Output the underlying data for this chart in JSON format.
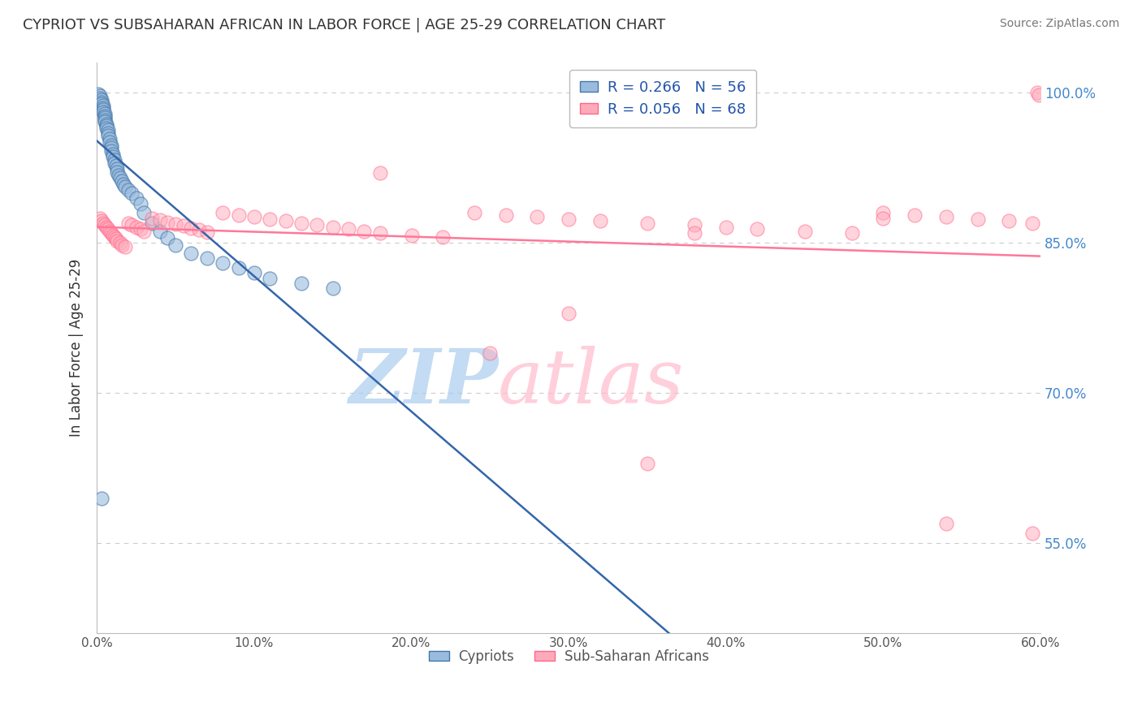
{
  "title": "CYPRIOT VS SUBSAHARAN AFRICAN IN LABOR FORCE | AGE 25-29 CORRELATION CHART",
  "source": "Source: ZipAtlas.com",
  "ylabel": "In Labor Force | Age 25-29",
  "xmin": 0.0,
  "xmax": 0.6,
  "ymin": 0.46,
  "ymax": 1.03,
  "yticks": [
    0.55,
    0.7,
    0.85,
    1.0
  ],
  "ytick_labels": [
    "55.0%",
    "70.0%",
    "85.0%",
    "100.0%"
  ],
  "xticks": [
    0.0,
    0.1,
    0.2,
    0.3,
    0.4,
    0.5,
    0.6
  ],
  "xtick_labels": [
    "0.0%",
    "10.0%",
    "20.0%",
    "30.0%",
    "40.0%",
    "50.0%",
    "60.0%"
  ],
  "blue_R": 0.266,
  "blue_N": 56,
  "pink_R": 0.056,
  "pink_N": 68,
  "legend_items": [
    "Cypriots",
    "Sub-Saharan Africans"
  ],
  "blue_color": "#99BBDD",
  "pink_color": "#FFAABB",
  "blue_edge_color": "#4477AA",
  "pink_edge_color": "#FF6688",
  "blue_line_color": "#3366AA",
  "pink_line_color": "#FF7799",
  "R_value_color": "#2255AA",
  "N_value_color": "#2255AA",
  "watermark_zip_color": "#AACCEE",
  "watermark_atlas_color": "#FFBBCC",
  "blue_scatter_x": [
    0.001,
    0.002,
    0.002,
    0.003,
    0.003,
    0.003,
    0.004,
    0.004,
    0.004,
    0.004,
    0.005,
    0.005,
    0.005,
    0.005,
    0.005,
    0.006,
    0.006,
    0.006,
    0.007,
    0.007,
    0.007,
    0.008,
    0.008,
    0.009,
    0.009,
    0.009,
    0.01,
    0.01,
    0.011,
    0.011,
    0.012,
    0.013,
    0.013,
    0.014,
    0.015,
    0.016,
    0.017,
    0.018,
    0.02,
    0.022,
    0.025,
    0.028,
    0.03,
    0.035,
    0.04,
    0.045,
    0.05,
    0.06,
    0.07,
    0.08,
    0.09,
    0.1,
    0.11,
    0.13,
    0.15,
    0.003
  ],
  "blue_scatter_y": [
    0.999,
    0.997,
    0.995,
    0.993,
    0.991,
    0.989,
    0.987,
    0.985,
    0.983,
    0.981,
    0.979,
    0.977,
    0.975,
    0.973,
    0.971,
    0.969,
    0.967,
    0.965,
    0.963,
    0.96,
    0.957,
    0.954,
    0.951,
    0.948,
    0.945,
    0.942,
    0.939,
    0.936,
    0.933,
    0.93,
    0.927,
    0.924,
    0.921,
    0.918,
    0.915,
    0.912,
    0.909,
    0.906,
    0.903,
    0.9,
    0.895,
    0.889,
    0.88,
    0.87,
    0.862,
    0.855,
    0.848,
    0.84,
    0.835,
    0.83,
    0.825,
    0.82,
    0.815,
    0.81,
    0.805,
    0.595
  ],
  "pink_scatter_x": [
    0.002,
    0.003,
    0.004,
    0.005,
    0.006,
    0.007,
    0.008,
    0.009,
    0.01,
    0.011,
    0.012,
    0.013,
    0.015,
    0.016,
    0.018,
    0.02,
    0.022,
    0.025,
    0.028,
    0.03,
    0.035,
    0.04,
    0.045,
    0.05,
    0.055,
    0.06,
    0.065,
    0.07,
    0.08,
    0.09,
    0.1,
    0.11,
    0.12,
    0.13,
    0.14,
    0.15,
    0.16,
    0.17,
    0.18,
    0.2,
    0.22,
    0.24,
    0.26,
    0.28,
    0.3,
    0.32,
    0.35,
    0.38,
    0.4,
    0.42,
    0.45,
    0.48,
    0.5,
    0.52,
    0.54,
    0.56,
    0.58,
    0.595,
    0.598,
    0.599,
    0.35,
    0.25,
    0.18,
    0.3,
    0.38,
    0.5,
    0.54,
    0.595
  ],
  "pink_scatter_y": [
    0.875,
    0.872,
    0.87,
    0.868,
    0.866,
    0.864,
    0.862,
    0.86,
    0.858,
    0.856,
    0.854,
    0.852,
    0.85,
    0.848,
    0.846,
    0.87,
    0.868,
    0.866,
    0.864,
    0.862,
    0.875,
    0.873,
    0.871,
    0.869,
    0.867,
    0.865,
    0.863,
    0.861,
    0.88,
    0.878,
    0.876,
    0.874,
    0.872,
    0.87,
    0.868,
    0.866,
    0.864,
    0.862,
    0.86,
    0.858,
    0.856,
    0.88,
    0.878,
    0.876,
    0.874,
    0.872,
    0.87,
    0.868,
    0.866,
    0.864,
    0.862,
    0.86,
    0.88,
    0.878,
    0.876,
    0.874,
    0.872,
    0.87,
    1.0,
    0.998,
    0.63,
    0.74,
    0.92,
    0.78,
    0.86,
    0.875,
    0.57,
    0.56
  ]
}
